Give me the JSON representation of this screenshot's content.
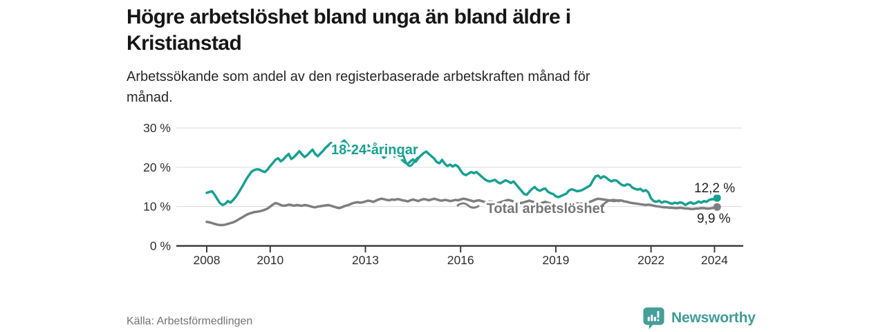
{
  "header": {
    "title": "Högre arbetslöshet bland unga än bland äldre i Kristianstad",
    "title_lines": [
      "Högre arbetslöshet bland unga än bland äldre i",
      "Kristianstad"
    ],
    "subtitle": "Arbetssökande som andel av den registerbaserade arbetskraften månad för månad.",
    "subtitle_lines": [
      "Arbetssökande som andel av den registerbaserade arbetskraften månad för",
      "månad."
    ]
  },
  "footer": {
    "source": "Källa: Arbetsförmedlingen",
    "brand_name": "Newsworthy",
    "brand_icon": "newsworthy-speech-bubble-barchart-icon"
  },
  "colors": {
    "youth_line": "#16A091",
    "total_line": "#7E7E7E",
    "total_label": "#767676",
    "logo_teal": "#449E99",
    "title_text": "#161616",
    "axis_text": "#2E2E2E",
    "axis_line": "#3D3D3D",
    "grid_line": "#DADADA",
    "value_label": "#1F1F1F",
    "source_text": "#737373",
    "background": "#FFFFFF"
  },
  "chart_data": {
    "type": "line",
    "title": "Högre arbetslöshet bland unga än bland äldre i Kristianstad",
    "subtitle": "Arbetssökande som andel av den registerbaserade arbetskraften månad för månad.",
    "unit": "%",
    "frequency": "monthly",
    "x_start": "2008-01",
    "x_end": "2024-02",
    "ylim": [
      0,
      30
    ],
    "grid": "horizontal",
    "legend_position": "inline-labels",
    "yticks": [
      {
        "value": 0,
        "label": "0 %"
      },
      {
        "value": 10,
        "label": "10 %"
      },
      {
        "value": 20,
        "label": "20 %"
      },
      {
        "value": 30,
        "label": "30 %"
      }
    ],
    "xticks": [
      {
        "year": 2008,
        "label": "2008"
      },
      {
        "year": 2010,
        "label": "2010"
      },
      {
        "year": 2013,
        "label": "2013"
      },
      {
        "year": 2016,
        "label": "2016"
      },
      {
        "year": 2019,
        "label": "2019"
      },
      {
        "year": 2022,
        "label": "2022"
      },
      {
        "year": 2024,
        "label": "2024"
      }
    ],
    "series": [
      {
        "name": "18-24-åringar",
        "color": "#16A091",
        "end_value": 12.2,
        "end_label": "12,2 %",
        "values": [
          13.5,
          13.7,
          13.9,
          13.0,
          11.9,
          10.9,
          10.4,
          10.7,
          11.4,
          11.0,
          11.7,
          12.5,
          13.5,
          14.6,
          15.8,
          17.0,
          18.0,
          18.9,
          19.3,
          19.5,
          19.4,
          19.0,
          18.8,
          19.4,
          20.3,
          21.1,
          21.9,
          22.3,
          21.5,
          22.0,
          22.8,
          23.4,
          22.1,
          22.6,
          23.3,
          24.1,
          23.3,
          22.6,
          23.1,
          23.8,
          24.5,
          23.4,
          22.8,
          23.5,
          24.2,
          25.0,
          25.6,
          26.2,
          25.3,
          24.7,
          25.5,
          26.3,
          26.8,
          26.0,
          25.1,
          24.3,
          24.8,
          25.4,
          24.6,
          24.2,
          24.9,
          25.6,
          24.8,
          24.1,
          23.5,
          24.2,
          23.1,
          22.4,
          23.0,
          23.7,
          23.3,
          22.7,
          23.2,
          22.5,
          21.8,
          21.2,
          20.8,
          21.5,
          22.0,
          21.4,
          22.3,
          23.0,
          23.6,
          24.0,
          23.4,
          22.8,
          22.2,
          21.3,
          21.0,
          21.9,
          20.9,
          20.3,
          20.7,
          20.2,
          20.6,
          20.2,
          19.2,
          18.3,
          18.0,
          18.4,
          18.8,
          18.5,
          18.8,
          18.2,
          17.6,
          17.0,
          16.6,
          16.4,
          16.6,
          16.8,
          16.2,
          15.9,
          16.3,
          16.7,
          16.4,
          16.0,
          16.4,
          15.6,
          14.8,
          14.0,
          13.2,
          13.0,
          13.8,
          14.5,
          15.0,
          14.3,
          14.0,
          14.4,
          14.6,
          13.8,
          13.4,
          13.2,
          12.6,
          12.4,
          12.7,
          13.0,
          13.3,
          14.1,
          14.4,
          14.2,
          13.9,
          14.0,
          14.2,
          14.6,
          15.0,
          15.4,
          16.6,
          17.7,
          17.9,
          17.2,
          17.7,
          17.4,
          16.8,
          16.4,
          16.7,
          16.6,
          16.0,
          15.5,
          15.3,
          15.7,
          15.5,
          14.8,
          14.5,
          14.3,
          14.5,
          13.9,
          14.2,
          13.6,
          12.1,
          11.4,
          11.2,
          11.5,
          11.0,
          11.3,
          11.2,
          10.9,
          10.7,
          11.0,
          10.8,
          11.1,
          10.9,
          10.4,
          10.8,
          11.1,
          10.7,
          10.9,
          11.3,
          11.0,
          11.4,
          11.2,
          11.7,
          11.9,
          11.8,
          12.2
        ]
      },
      {
        "name": "Total arbetslöshet",
        "color": "#7E7E7E",
        "end_value": 9.9,
        "end_label": "9,9 %",
        "values": [
          6.1,
          6.0,
          5.8,
          5.6,
          5.4,
          5.3,
          5.3,
          5.4,
          5.6,
          5.8,
          6.0,
          6.3,
          6.7,
          7.1,
          7.5,
          7.9,
          8.2,
          8.4,
          8.6,
          8.7,
          8.8,
          9.0,
          9.2,
          9.5,
          10.0,
          10.5,
          10.9,
          10.7,
          10.4,
          10.2,
          10.3,
          10.5,
          10.4,
          10.2,
          10.4,
          10.3,
          10.2,
          10.4,
          10.3,
          10.1,
          9.9,
          9.8,
          10.0,
          10.1,
          10.2,
          10.3,
          10.4,
          10.2,
          10.0,
          9.8,
          9.6,
          9.8,
          10.1,
          10.3,
          10.5,
          10.8,
          11.0,
          11.1,
          11.0,
          11.1,
          11.3,
          11.5,
          11.4,
          11.2,
          11.5,
          11.8,
          12.0,
          11.9,
          11.7,
          11.6,
          11.8,
          11.7,
          11.9,
          11.8,
          11.6,
          11.5,
          11.3,
          11.6,
          11.8,
          11.6,
          11.4,
          11.7,
          11.9,
          11.8,
          11.6,
          11.8,
          12.0,
          11.8,
          11.6,
          11.5,
          11.7,
          11.6,
          11.4,
          11.5,
          11.7,
          11.6,
          11.8,
          12.0,
          11.9,
          11.7,
          11.5,
          11.3,
          11.5,
          11.6,
          11.4,
          11.2,
          11.1,
          11.3,
          11.2,
          11.0,
          10.9,
          11.1,
          11.3,
          11.5,
          11.7,
          11.5,
          11.3,
          11.1,
          11.0,
          10.9,
          11.1,
          11.3,
          11.5,
          11.3,
          11.1,
          10.9,
          10.8,
          11.0,
          11.2,
          11.0,
          10.8,
          10.7,
          10.6,
          10.5,
          10.4,
          10.5,
          10.7,
          10.9,
          11.1,
          11.0,
          10.8,
          10.7,
          10.8,
          10.9,
          11.0,
          11.2,
          11.5,
          11.8,
          12.0,
          11.9,
          11.8,
          11.7,
          11.6,
          11.5,
          11.4,
          11.5,
          11.6,
          11.5,
          11.3,
          11.2,
          11.0,
          10.9,
          10.8,
          10.7,
          10.6,
          10.5,
          10.4,
          10.5,
          10.4,
          10.2,
          10.1,
          10.0,
          9.9,
          9.8,
          9.8,
          9.7,
          9.7,
          9.6,
          9.6,
          9.7,
          9.6,
          9.5,
          9.5,
          9.4,
          9.4,
          9.5,
          9.5,
          9.6,
          9.6,
          9.5,
          9.5,
          9.6,
          9.7,
          9.9
        ]
      }
    ],
    "annotations": [
      {
        "text": "18-24-åringar",
        "type": "series-label",
        "series": 0
      },
      {
        "text": "Total arbetslöshet",
        "type": "series-label",
        "series": 1
      }
    ]
  }
}
